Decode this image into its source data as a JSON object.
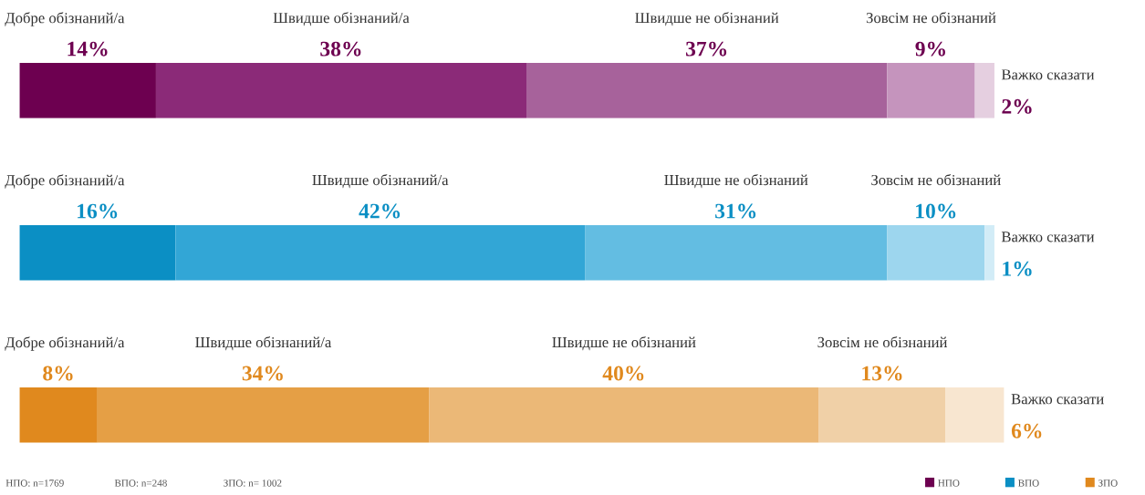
{
  "chart_data": {
    "type": "bar",
    "orientation": "horizontal",
    "stacked": true,
    "categories": [
      null,
      null,
      null
    ],
    "series": [
      {
        "name": "Добре обізнаний/а",
        "values": [
          14,
          16,
          8
        ],
        "colors": [
          "#6d0050",
          "#0b8fc4",
          "#e0891e"
        ],
        "value_labels": [
          "14%",
          "16%",
          "8%"
        ]
      },
      {
        "name": "Швидше обізнаний/а",
        "values": [
          38,
          42,
          34
        ],
        "colors": [
          "#8b2a78",
          "#32a6d6",
          "#e59f45"
        ],
        "value_labels": [
          "38%",
          "42%",
          "34%"
        ]
      },
      {
        "name": "Швидше не обізнаний",
        "values": [
          37,
          31,
          40
        ],
        "colors": [
          "#a7629b",
          "#63bde2",
          "#ebb877"
        ],
        "value_labels": [
          "37%",
          "31%",
          "40%"
        ]
      },
      {
        "name": "Зовсім не обізнаний",
        "values": [
          9,
          10,
          13
        ],
        "colors": [
          "#c594bd",
          "#9dd6ee",
          "#f0d0a7"
        ],
        "value_labels": [
          "9%",
          "10%",
          "13%"
        ]
      },
      {
        "name": "Важко сказати",
        "values": [
          2,
          1,
          6
        ],
        "colors": [
          "#e5cfe0",
          "#d2ecf7",
          "#f8e6d0"
        ],
        "value_labels": [
          "2%",
          "1%",
          "6%"
        ]
      }
    ],
    "annotations": [
      "НПО: n=1769",
      "ВПО: n=248",
      "ЗПО: n= 1002",
      "НПО",
      "ВПО",
      "ЗПО"
    ]
  }
}
